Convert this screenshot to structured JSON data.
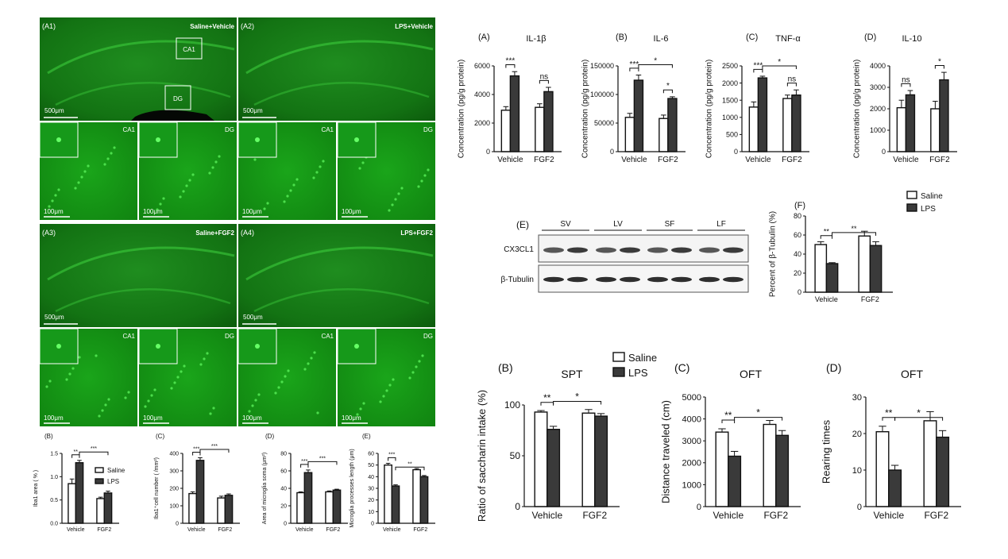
{
  "microscopy": {
    "panels": [
      {
        "id": "A1",
        "label": "(A1)",
        "group": "Saline+Vehicle"
      },
      {
        "id": "A2",
        "label": "(A2)",
        "group": "LPS+Vehicle"
      },
      {
        "id": "A3",
        "label": "(A3)",
        "group": "Saline+FGF2"
      },
      {
        "id": "A4",
        "label": "(A4)",
        "group": "LPS+FGF2"
      }
    ],
    "roi_ca1": "CA1",
    "roi_dg": "DG",
    "scale_500": "500μm",
    "scale_100": "100μm"
  },
  "colors": {
    "saline": "#ffffff",
    "lps": "#3a3a3a",
    "fluor": "#2fbf2f",
    "axis": "#111111"
  },
  "chart_data": [
    {
      "id": "iba1_area",
      "panel_label": "(B)",
      "type": "bar",
      "title": "",
      "ylabel": "Iba1 area ( % )",
      "categories": [
        "Vehicle",
        "FGF2"
      ],
      "series": [
        {
          "name": "Saline",
          "values": [
            0.85,
            0.53
          ],
          "err": [
            0.1,
            0.03
          ]
        },
        {
          "name": "LPS",
          "values": [
            1.3,
            0.65
          ],
          "err": [
            0.05,
            0.04
          ]
        }
      ],
      "ylim": [
        0,
        1.5
      ],
      "yticks": [
        "0.0",
        "0.5",
        "1.0",
        "1.5"
      ],
      "tickvals": [
        0,
        0.5,
        1,
        1.5
      ],
      "legend": [
        "Saline",
        "LPS"
      ],
      "sig": [
        {
          "a": [
            0,
            0
          ],
          "b": [
            0,
            1
          ],
          "text": "**"
        },
        {
          "a": [
            0,
            1
          ],
          "b": [
            1,
            1
          ],
          "text": "***"
        }
      ]
    },
    {
      "id": "iba1_count",
      "panel_label": "(C)",
      "type": "bar",
      "title": "",
      "ylabel": "Iba1⁺cell number ( /mm²)",
      "categories": [
        "Vehicle",
        "FGF2"
      ],
      "series": [
        {
          "name": "Saline",
          "values": [
            170,
            145
          ],
          "err": [
            10,
            10
          ]
        },
        {
          "name": "LPS",
          "values": [
            360,
            160
          ],
          "err": [
            15,
            8
          ]
        }
      ],
      "ylim": [
        0,
        400
      ],
      "yticks": [
        "0",
        "100",
        "200",
        "300",
        "400"
      ],
      "tickvals": [
        0,
        100,
        200,
        300,
        400
      ],
      "sig": [
        {
          "a": [
            0,
            0
          ],
          "b": [
            0,
            1
          ],
          "text": "***"
        },
        {
          "a": [
            0,
            1
          ],
          "b": [
            1,
            1
          ],
          "text": "***"
        }
      ]
    },
    {
      "id": "soma_area",
      "panel_label": "(D)",
      "type": "bar",
      "title": "",
      "ylabel": "Area of microglia soma (μm²)",
      "categories": [
        "Vehicle",
        "FGF2"
      ],
      "series": [
        {
          "name": "Saline",
          "values": [
            35,
            36
          ],
          "err": [
            1,
            1
          ]
        },
        {
          "name": "LPS",
          "values": [
            58,
            38
          ],
          "err": [
            3,
            1
          ]
        }
      ],
      "ylim": [
        0,
        80
      ],
      "yticks": [
        "0",
        "20",
        "40",
        "60",
        "80"
      ],
      "tickvals": [
        0,
        20,
        40,
        60,
        80
      ],
      "sig": [
        {
          "a": [
            0,
            0
          ],
          "b": [
            0,
            1
          ],
          "text": "***"
        },
        {
          "a": [
            0,
            1
          ],
          "b": [
            1,
            1
          ],
          "text": "***"
        }
      ]
    },
    {
      "id": "process_length",
      "panel_label": "(E)",
      "type": "bar",
      "title": "",
      "ylabel": "Microglia processes length (μm)",
      "categories": [
        "Vehicle",
        "FGF2"
      ],
      "series": [
        {
          "name": "Saline",
          "values": [
            50,
            46
          ],
          "err": [
            1.5,
            1
          ]
        },
        {
          "name": "LPS",
          "values": [
            32,
            40
          ],
          "err": [
            1,
            1
          ]
        }
      ],
      "ylim": [
        0,
        60
      ],
      "yticks": [
        "0",
        "10",
        "20",
        "30",
        "40",
        "50",
        "60"
      ],
      "tickvals": [
        0,
        10,
        20,
        30,
        40,
        50,
        60
      ],
      "sig": [
        {
          "a": [
            0,
            0
          ],
          "b": [
            0,
            1
          ],
          "text": "***"
        },
        {
          "a": [
            0,
            1
          ],
          "b": [
            1,
            1
          ],
          "text": "**"
        }
      ]
    },
    {
      "id": "il1b",
      "panel_label": "(A)",
      "type": "bar",
      "title": "IL-1β",
      "ylabel": "Concentration (pg/g protein)",
      "categories": [
        "Vehicle",
        "FGF2"
      ],
      "series": [
        {
          "name": "Saline",
          "values": [
            2900,
            3100
          ],
          "err": [
            250,
            250
          ]
        },
        {
          "name": "LPS",
          "values": [
            5300,
            4200
          ],
          "err": [
            300,
            300
          ]
        }
      ],
      "ylim": [
        0,
        6000
      ],
      "yticks": [
        "0",
        "2000",
        "4000",
        "6000"
      ],
      "tickvals": [
        0,
        2000,
        4000,
        6000
      ],
      "sig": [
        {
          "a": [
            0,
            0
          ],
          "b": [
            0,
            1
          ],
          "text": "***"
        },
        {
          "a": [
            1,
            0
          ],
          "b": [
            1,
            1
          ],
          "text": "ns"
        }
      ]
    },
    {
      "id": "il6",
      "panel_label": "(B)",
      "type": "bar",
      "title": "IL-6",
      "ylabel": "Concentration (pg/g protein)",
      "categories": [
        "Vehicle",
        "FGF2"
      ],
      "series": [
        {
          "name": "Saline",
          "values": [
            60000,
            58000
          ],
          "err": [
            7000,
            6000
          ]
        },
        {
          "name": "LPS",
          "values": [
            125000,
            93000
          ],
          "err": [
            9000,
            3000
          ]
        }
      ],
      "ylim": [
        0,
        150000
      ],
      "yticks": [
        "0",
        "50000",
        "100000",
        "150000"
      ],
      "tickvals": [
        0,
        50000,
        100000,
        150000
      ],
      "sig": [
        {
          "a": [
            0,
            0
          ],
          "b": [
            0,
            1
          ],
          "text": "***"
        },
        {
          "a": [
            0,
            1
          ],
          "b": [
            1,
            1
          ],
          "text": "*"
        },
        {
          "a": [
            1,
            0
          ],
          "b": [
            1,
            1
          ],
          "text": "*"
        }
      ]
    },
    {
      "id": "tnfa",
      "panel_label": "(C)",
      "type": "bar",
      "title": "TNF-α",
      "ylabel": "Concentration (pg/g protein)",
      "categories": [
        "Vehicle",
        "FGF2"
      ],
      "series": [
        {
          "name": "Saline",
          "values": [
            1300,
            1550
          ],
          "err": [
            150,
            100
          ]
        },
        {
          "name": "LPS",
          "values": [
            2150,
            1650
          ],
          "err": [
            50,
            150
          ]
        }
      ],
      "ylim": [
        0,
        2500
      ],
      "yticks": [
        "0",
        "500",
        "1000",
        "1500",
        "2000",
        "2500"
      ],
      "tickvals": [
        0,
        500,
        1000,
        1500,
        2000,
        2500
      ],
      "sig": [
        {
          "a": [
            0,
            0
          ],
          "b": [
            0,
            1
          ],
          "text": "***"
        },
        {
          "a": [
            0,
            1
          ],
          "b": [
            1,
            1
          ],
          "text": "*"
        },
        {
          "a": [
            1,
            0
          ],
          "b": [
            1,
            1
          ],
          "text": "ns"
        }
      ]
    },
    {
      "id": "il10",
      "panel_label": "(D)",
      "type": "bar",
      "title": "IL-10",
      "ylabel": "Concentration (pg/g protein)",
      "categories": [
        "Vehicle",
        "FGF2"
      ],
      "series": [
        {
          "name": "Saline",
          "values": [
            2050,
            2000
          ],
          "err": [
            350,
            350
          ]
        },
        {
          "name": "LPS",
          "values": [
            2650,
            3350
          ],
          "err": [
            200,
            350
          ]
        }
      ],
      "ylim": [
        0,
        4000
      ],
      "yticks": [
        "0",
        "1000",
        "2000",
        "3000",
        "4000"
      ],
      "tickvals": [
        0,
        1000,
        2000,
        3000,
        4000
      ],
      "sig": [
        {
          "a": [
            0,
            0
          ],
          "b": [
            0,
            1
          ],
          "text": "ns"
        },
        {
          "a": [
            1,
            0
          ],
          "b": [
            1,
            1
          ],
          "text": "*"
        }
      ]
    },
    {
      "id": "cx3cl1",
      "panel_label": "(F)",
      "type": "bar",
      "title": "",
      "ylabel": "Percent of β-Tubulin (%)",
      "categories": [
        "Vehicle",
        "FGF2"
      ],
      "series": [
        {
          "name": "Saline",
          "values": [
            50,
            59
          ],
          "err": [
            3,
            5
          ]
        },
        {
          "name": "LPS",
          "values": [
            30,
            49
          ],
          "err": [
            1,
            4
          ]
        }
      ],
      "ylim": [
        0,
        80
      ],
      "yticks": [
        "0",
        "20",
        "40",
        "60",
        "80"
      ],
      "tickvals": [
        0,
        20,
        40,
        60,
        80
      ],
      "legend": [
        "Saline",
        "LPS"
      ],
      "sig": [
        {
          "a": [
            0,
            0
          ],
          "b": [
            0,
            1
          ],
          "text": "**"
        },
        {
          "a": [
            0,
            1
          ],
          "b": [
            1,
            1
          ],
          "text": "**"
        }
      ]
    },
    {
      "id": "spt",
      "panel_label": "(B)",
      "type": "bar",
      "title": "SPT",
      "ylabel": "Ratio of saccharin intake (%)",
      "categories": [
        "Vehicle",
        "FGF2"
      ],
      "series": [
        {
          "name": "Saline",
          "values": [
            93,
            92
          ],
          "err": [
            1.5,
            3.5
          ]
        },
        {
          "name": "LPS",
          "values": [
            76,
            89
          ],
          "err": [
            3,
            2.5
          ]
        }
      ],
      "ylim": [
        0,
        100
      ],
      "yticks": [
        "0",
        "50",
        "100"
      ],
      "tickvals": [
        0,
        50,
        100
      ],
      "legend": [
        "Saline",
        "LPS"
      ],
      "sig": [
        {
          "a": [
            0,
            0
          ],
          "b": [
            0,
            1
          ],
          "text": "**"
        },
        {
          "a": [
            0,
            1
          ],
          "b": [
            1,
            1
          ],
          "text": "*"
        }
      ]
    },
    {
      "id": "oft_distance",
      "panel_label": "(C)",
      "type": "bar",
      "title": "OFT",
      "ylabel": "Distance traveled (cm)",
      "categories": [
        "Vehicle",
        "FGF2"
      ],
      "series": [
        {
          "name": "Saline",
          "values": [
            3400,
            3750
          ],
          "err": [
            150,
            180
          ]
        },
        {
          "name": "LPS",
          "values": [
            2300,
            3250
          ],
          "err": [
            220,
            220
          ]
        }
      ],
      "ylim": [
        0,
        5000
      ],
      "yticks": [
        "0",
        "1000",
        "2000",
        "3000",
        "4000",
        "5000"
      ],
      "tickvals": [
        0,
        1000,
        2000,
        3000,
        4000,
        5000
      ],
      "sig": [
        {
          "a": [
            0,
            0
          ],
          "b": [
            0,
            1
          ],
          "text": "**"
        },
        {
          "a": [
            0,
            1
          ],
          "b": [
            1,
            1
          ],
          "text": "*"
        }
      ]
    },
    {
      "id": "oft_rearing",
      "panel_label": "(D)",
      "type": "bar",
      "title": "OFT",
      "ylabel": "Rearing times",
      "categories": [
        "Vehicle",
        "FGF2"
      ],
      "series": [
        {
          "name": "Saline",
          "values": [
            20.5,
            23.5
          ],
          "err": [
            1.5,
            2.5
          ]
        },
        {
          "name": "LPS",
          "values": [
            10,
            19
          ],
          "err": [
            1.3,
            1.8
          ]
        }
      ],
      "ylim": [
        0,
        30
      ],
      "yticks": [
        "0",
        "10",
        "20",
        "30"
      ],
      "tickvals": [
        0,
        10,
        20,
        30
      ],
      "sig": [
        {
          "a": [
            0,
            0
          ],
          "b": [
            0,
            1
          ],
          "text": "**"
        },
        {
          "a": [
            0,
            1
          ],
          "b": [
            1,
            1
          ],
          "text": "*"
        }
      ]
    }
  ],
  "western": {
    "panel_label": "(E)",
    "lanes": [
      "SV",
      "LV",
      "SF",
      "LF"
    ],
    "proteins": [
      "CX3CL1",
      "β-Tubulin"
    ]
  }
}
